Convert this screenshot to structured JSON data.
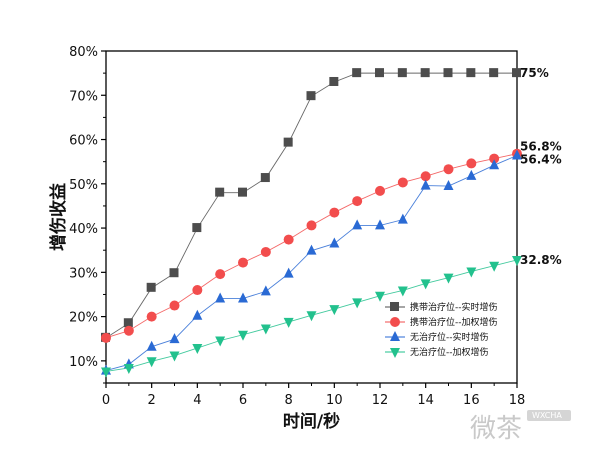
{
  "chart_data": {
    "type": "line",
    "xlabel": "时间/秒",
    "ylabel": "增伤收益",
    "xlim": [
      0,
      18
    ],
    "ylim": [
      5,
      80
    ],
    "x_ticks": [
      "0",
      "2",
      "4",
      "6",
      "8",
      "10",
      "12",
      "14",
      "16",
      "18"
    ],
    "y_ticks": [
      "10%",
      "20%",
      "30%",
      "40%",
      "50%",
      "60%",
      "70%",
      "80%"
    ],
    "grid": false,
    "legend_position": "bottom-right",
    "end_labels": [
      "75%",
      "56.8%",
      "56.4%",
      "32.8%"
    ],
    "series": [
      {
        "name": "携带治疗位--实时增伤",
        "marker": "square",
        "color": "#4d4d4d",
        "x": [
          0,
          1,
          2,
          3,
          4,
          5,
          6,
          7,
          8,
          9,
          10,
          11,
          12,
          13,
          14,
          15,
          16,
          17,
          18
        ],
        "y": [
          15.2,
          18.5,
          26.5,
          29.8,
          40,
          48,
          48,
          51.3,
          59.3,
          69.8,
          73,
          75,
          75,
          75,
          75,
          75,
          75,
          75,
          75
        ]
      },
      {
        "name": "携带治疗位--加权增伤",
        "marker": "circle",
        "color": "#f24d4d",
        "x": [
          0,
          1,
          2,
          3,
          4,
          5,
          6,
          7,
          8,
          9,
          10,
          11,
          12,
          13,
          14,
          15,
          16,
          17,
          18
        ],
        "y": [
          15.2,
          16.8,
          20,
          22.5,
          26,
          29.6,
          32.2,
          34.6,
          37.4,
          40.6,
          43.5,
          46.1,
          48.4,
          50.3,
          51.7,
          53.3,
          54.6,
          55.7,
          56.8
        ]
      },
      {
        "name": "无治疗位--实时增伤",
        "marker": "triangle-up",
        "color": "#2a6ad4",
        "x": [
          0,
          1,
          2,
          3,
          4,
          5,
          6,
          7,
          8,
          9,
          10,
          11,
          12,
          13,
          14,
          15,
          16,
          17,
          18
        ],
        "y": [
          7.8,
          9.2,
          13.2,
          14.9,
          20.2,
          24.1,
          24.1,
          25.7,
          29.7,
          34.9,
          36.5,
          40.6,
          40.6,
          41.9,
          49.6,
          49.5,
          51.8,
          54.2,
          56.4
        ]
      },
      {
        "name": "无治疗位--加权增伤",
        "marker": "triangle-down",
        "color": "#22c18d",
        "x": [
          0,
          1,
          2,
          3,
          4,
          5,
          6,
          7,
          8,
          9,
          10,
          11,
          12,
          13,
          14,
          15,
          16,
          17,
          18
        ],
        "y": [
          7.6,
          8.4,
          9.9,
          11.2,
          12.9,
          14.6,
          15.9,
          17.3,
          18.8,
          20.3,
          21.7,
          23.2,
          24.7,
          25.9,
          27.5,
          28.8,
          30.2,
          31.5,
          32.8
        ]
      }
    ]
  },
  "watermark": {
    "text": "微茶",
    "badge": "WXCHA"
  }
}
